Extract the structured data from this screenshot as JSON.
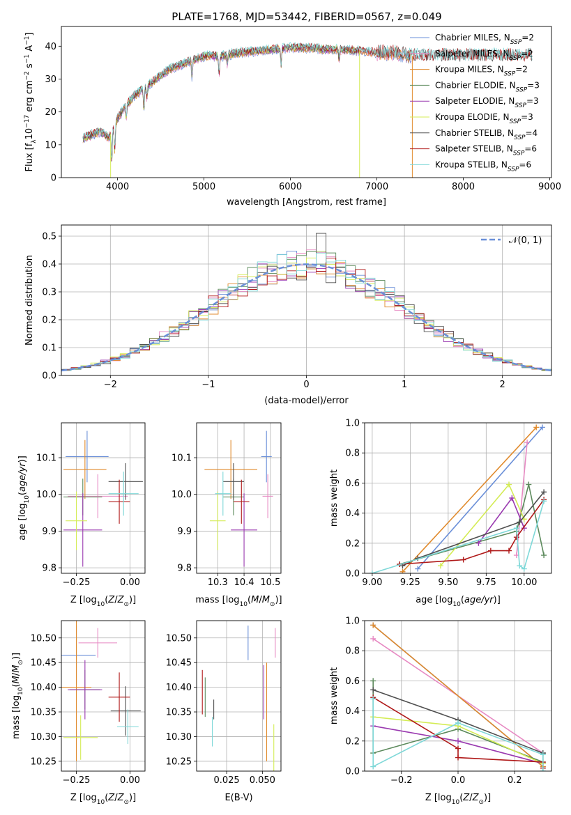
{
  "title": "PLATE=1768, MJD=53442, FIBERID=0567, z=0.049",
  "colors": [
    "#6a8fd8",
    "#e78ac3",
    "#e08a2c",
    "#5c8a5c",
    "#9a3ab0",
    "#d4ec55",
    "#505050",
    "#b01a1a",
    "#7fd8d8"
  ],
  "chart_data": [
    {
      "id": "spectrum",
      "type": "line",
      "xlabel": "wavelength [Angstrom, rest frame]",
      "ylabel": "Flux [f_λ 10^-17 erg cm^-2 s^-1 A^-1]",
      "xlim": [
        3350,
        9020
      ],
      "ylim": [
        0,
        46
      ],
      "xticks": [
        4000,
        5000,
        6000,
        7000,
        8000,
        9000
      ],
      "yticks": [
        0,
        10,
        20,
        30,
        40
      ],
      "grid": false,
      "legend_position": "upper-right",
      "series": [
        {
          "name": "Chabrier MILES, N_SSP=2",
          "x_range": [
            3600,
            7400
          ]
        },
        {
          "name": "Salpeter MILES, N_SSP=2",
          "x_range": [
            3600,
            7400
          ]
        },
        {
          "name": "Kroupa MILES, N_SSP=2",
          "x_range": [
            3600,
            7400
          ]
        },
        {
          "name": "Chabrier ELODIE, N_SSP=3",
          "x_range": [
            3600,
            6800
          ]
        },
        {
          "name": "Salpeter ELODIE, N_SSP=3",
          "x_range": [
            3600,
            6800
          ]
        },
        {
          "name": "Kroupa ELODIE, N_SSP=3",
          "x_range": [
            3600,
            6800
          ]
        },
        {
          "name": "Chabrier STELIB, N_SSP=4",
          "x_range": [
            3600,
            8800
          ]
        },
        {
          "name": "Salpeter STELIB, N_SSP=6",
          "x_range": [
            3600,
            8800
          ]
        },
        {
          "name": "Kroupa STELIB, N_SSP=6",
          "x_range": [
            3600,
            8800
          ]
        }
      ],
      "continuum": [
        [
          3600,
          12
        ],
        [
          3700,
          13
        ],
        [
          3800,
          14
        ],
        [
          3900,
          12
        ],
        [
          4000,
          18
        ],
        [
          4100,
          22
        ],
        [
          4200,
          25
        ],
        [
          4300,
          27
        ],
        [
          4400,
          29
        ],
        [
          4500,
          31
        ],
        [
          4600,
          33
        ],
        [
          4700,
          34
        ],
        [
          4800,
          35
        ],
        [
          4900,
          36
        ],
        [
          5000,
          37
        ],
        [
          5200,
          37
        ],
        [
          5400,
          38
        ],
        [
          5600,
          38.5
        ],
        [
          5800,
          39
        ],
        [
          6000,
          39.5
        ],
        [
          6200,
          39.5
        ],
        [
          6400,
          39
        ],
        [
          6600,
          39
        ],
        [
          6800,
          38.5
        ],
        [
          7000,
          38
        ],
        [
          7200,
          38
        ],
        [
          7400,
          37
        ]
      ],
      "absorption_lines": [
        [
          3933,
          9
        ],
        [
          3968,
          8
        ],
        [
          4101,
          4
        ],
        [
          4305,
          6
        ],
        [
          4340,
          4
        ],
        [
          4861,
          5
        ],
        [
          5175,
          6
        ],
        [
          5270,
          3
        ],
        [
          5892,
          5
        ],
        [
          6563,
          3
        ]
      ],
      "spikes": [
        [
          3920,
          0
        ],
        [
          6800,
          0
        ],
        [
          7410,
          0
        ]
      ]
    },
    {
      "id": "residuals",
      "type": "histogram",
      "xlabel": "(data-model)/error",
      "ylabel": "Normed distribution",
      "xlim": [
        -2.5,
        2.5
      ],
      "ylim": [
        0,
        0.54
      ],
      "xticks": [
        -2,
        -1,
        0,
        1,
        2
      ],
      "xtick_labels": [
        "−2",
        "−1",
        "0",
        "1",
        "2"
      ],
      "yticks": [
        0.0,
        0.1,
        0.2,
        0.3,
        0.4,
        0.5
      ],
      "grid": true,
      "reference_curve": "𝒩(0, 1)",
      "bin_width": 0.1,
      "bin_start": -2.5,
      "noise_seed": 7
    },
    {
      "id": "age-vs-Z",
      "type": "errorbar",
      "xlabel": "Z [log10(Z/Z⊙)]",
      "ylabel": "age  [log10(age/yr)]",
      "xlim": [
        -0.32,
        0.07
      ],
      "ylim": [
        9.785,
        10.195
      ],
      "xticks": [
        -0.25,
        0.0
      ],
      "xtick_labels": [
        "−0.25",
        "0.00"
      ],
      "yticks": [
        9.8,
        9.9,
        10.0,
        10.1
      ],
      "grid": true,
      "points": [
        {
          "x": -0.2,
          "y": 10.103,
          "xerr": 0.1,
          "yerr": 0.07
        },
        {
          "x": -0.15,
          "y": 9.995,
          "xerr": 0.14,
          "yerr": 0.06
        },
        {
          "x": -0.21,
          "y": 10.068,
          "xerr": 0.1,
          "yerr": 0.08
        },
        {
          "x": -0.22,
          "y": 9.993,
          "xerr": 0.09,
          "yerr": 0.05
        },
        {
          "x": -0.22,
          "y": 9.903,
          "xerr": 0.09,
          "yerr": 0.1
        },
        {
          "x": -0.25,
          "y": 9.928,
          "xerr": 0.05,
          "yerr": 0.08
        },
        {
          "x": -0.02,
          "y": 10.035,
          "xerr": 0.08,
          "yerr": 0.05
        },
        {
          "x": -0.05,
          "y": 9.98,
          "xerr": 0.05,
          "yerr": 0.06
        },
        {
          "x": -0.03,
          "y": 10.002,
          "xerr": 0.07,
          "yerr": 0.06
        }
      ]
    },
    {
      "id": "age-vs-mass",
      "type": "errorbar",
      "xlabel": "mass [log10(M/M⊙)]",
      "ylabel": "",
      "xlim": [
        10.22,
        10.54
      ],
      "ylim": [
        9.785,
        10.195
      ],
      "xticks": [
        10.3,
        10.4,
        10.5
      ],
      "yticks": [
        9.8,
        9.9,
        10.0,
        10.1
      ],
      "grid": true,
      "points": [
        {
          "x": 10.485,
          "y": 10.103,
          "xerr": 0.02,
          "yerr": 0.07
        },
        {
          "x": 10.49,
          "y": 9.995,
          "xerr": 0.02,
          "yerr": 0.06
        },
        {
          "x": 10.35,
          "y": 10.068,
          "xerr": 0.1,
          "yerr": 0.08
        },
        {
          "x": 10.36,
          "y": 9.993,
          "xerr": 0.04,
          "yerr": 0.05
        },
        {
          "x": 10.4,
          "y": 9.903,
          "xerr": 0.05,
          "yerr": 0.1
        },
        {
          "x": 10.3,
          "y": 9.928,
          "xerr": 0.03,
          "yerr": 0.08
        },
        {
          "x": 10.36,
          "y": 10.035,
          "xerr": 0.04,
          "yerr": 0.05
        },
        {
          "x": 10.39,
          "y": 9.98,
          "xerr": 0.03,
          "yerr": 0.06
        },
        {
          "x": 10.32,
          "y": 10.002,
          "xerr": 0.03,
          "yerr": 0.06
        }
      ]
    },
    {
      "id": "massweight-vs-age",
      "type": "line",
      "xlabel": "age  [log10(age/yr)]",
      "ylabel": "mass weight",
      "xlim": [
        8.95,
        10.18
      ],
      "ylim": [
        0.0,
        1.0
      ],
      "xticks": [
        9.0,
        9.25,
        9.5,
        9.75,
        10.0
      ],
      "xtick_labels": [
        "9.00",
        "9.25",
        "9.50",
        "9.75",
        "10.00"
      ],
      "yticks": [
        0.0,
        0.2,
        0.4,
        0.6,
        0.8,
        1.0
      ],
      "grid": true,
      "series": [
        {
          "x": [
            9.3,
            10.12
          ],
          "y": [
            0.03,
            0.97
          ]
        },
        {
          "x": [
            9.95,
            10.02
          ],
          "y": [
            0.12,
            0.87
          ]
        },
        {
          "x": [
            9.2,
            10.08
          ],
          "y": [
            0.01,
            0.97
          ]
        },
        {
          "x": [
            9.18,
            9.95,
            10.03,
            10.13
          ],
          "y": [
            0.06,
            0.28,
            0.59,
            0.12
          ]
        },
        {
          "x": [
            9.7,
            9.92,
            10.0
          ],
          "y": [
            0.2,
            0.5,
            0.3
          ]
        },
        {
          "x": [
            9.45,
            9.9,
            10.0
          ],
          "y": [
            0.05,
            0.59,
            0.36
          ]
        },
        {
          "x": [
            9.2,
            9.3,
            9.97,
            10.13
          ],
          "y": [
            0.05,
            0.1,
            0.34,
            0.54
          ]
        },
        {
          "x": [
            9.18,
            9.6,
            9.78,
            9.9,
            9.95,
            10.13
          ],
          "y": [
            0.06,
            0.09,
            0.15,
            0.15,
            0.24,
            0.49
          ]
        },
        {
          "x": [
            9.0,
            9.95,
            9.97,
            10.0,
            10.13
          ],
          "y": [
            0.0,
            0.3,
            0.05,
            0.03,
            0.48
          ]
        }
      ]
    },
    {
      "id": "mass-vs-Z",
      "type": "errorbar",
      "xlabel": "Z [log10(Z/Z⊙)]",
      "ylabel": "mass [log10(M/M⊙)]",
      "xlim": [
        -0.32,
        0.07
      ],
      "ylim": [
        10.23,
        10.535
      ],
      "xticks": [
        -0.25,
        0.0
      ],
      "xtick_labels": [
        "−0.25",
        "0.00"
      ],
      "yticks": [
        10.25,
        10.3,
        10.35,
        10.4,
        10.45,
        10.5
      ],
      "grid": true,
      "points": [
        {
          "x": -0.25,
          "y": 10.465,
          "xerr": 0.09,
          "yerr": 0.06
        },
        {
          "x": -0.15,
          "y": 10.49,
          "xerr": 0.09,
          "yerr": 0.03
        },
        {
          "x": -0.25,
          "y": 10.4,
          "xerr": 0.07,
          "yerr": 0.15
        },
        {
          "x": -0.21,
          "y": 10.395,
          "xerr": 0.07,
          "yerr": 0.04
        },
        {
          "x": -0.21,
          "y": 10.395,
          "xerr": 0.08,
          "yerr": 0.06
        },
        {
          "x": -0.23,
          "y": 10.298,
          "xerr": 0.08,
          "yerr": 0.045
        },
        {
          "x": -0.02,
          "y": 10.352,
          "xerr": 0.07,
          "yerr": 0.05
        },
        {
          "x": -0.05,
          "y": 10.38,
          "xerr": 0.05,
          "yerr": 0.05
        },
        {
          "x": -0.01,
          "y": 10.32,
          "xerr": 0.05,
          "yerr": 0.035
        }
      ]
    },
    {
      "id": "mass-vs-EBV",
      "type": "errorbar",
      "xlabel": "E(B-V)",
      "ylabel": "",
      "xlim": [
        0.004,
        0.063
      ],
      "ylim": [
        10.23,
        10.535
      ],
      "xticks": [
        0.025,
        0.05
      ],
      "xtick_labels": [
        "0.025",
        "0.050"
      ],
      "yticks": [
        10.25,
        10.3,
        10.35,
        10.4,
        10.45,
        10.5
      ],
      "grid": true,
      "points": [
        {
          "x": 0.04,
          "y": 10.49,
          "xerr": 0.0,
          "yerr": 0.035
        },
        {
          "x": 0.059,
          "y": 10.49,
          "xerr": 0.0,
          "yerr": 0.03
        },
        {
          "x": 0.053,
          "y": 10.35,
          "xerr": 0.0,
          "yerr": 0.1
        },
        {
          "x": 0.01,
          "y": 10.38,
          "xerr": 0.0,
          "yerr": 0.04
        },
        {
          "x": 0.051,
          "y": 10.39,
          "xerr": 0.0,
          "yerr": 0.055
        },
        {
          "x": 0.058,
          "y": 10.275,
          "xerr": 0.0,
          "yerr": 0.05
        },
        {
          "x": 0.016,
          "y": 10.355,
          "xerr": 0.0,
          "yerr": 0.02
        },
        {
          "x": 0.008,
          "y": 10.39,
          "xerr": 0.0,
          "yerr": 0.045
        },
        {
          "x": 0.015,
          "y": 10.31,
          "xerr": 0.0,
          "yerr": 0.03
        }
      ]
    },
    {
      "id": "massweight-vs-Z",
      "type": "line",
      "xlabel": "Z [log10(Z/Z⊙)]",
      "ylabel": "mass weight",
      "xlim": [
        -0.33,
        0.33
      ],
      "ylim": [
        0.0,
        1.0
      ],
      "xticks": [
        -0.2,
        0.0,
        0.2
      ],
      "xtick_labels": [
        "−0.2",
        "0.0",
        "0.2"
      ],
      "yticks": [
        0.0,
        0.2,
        0.4,
        0.6,
        0.8,
        1.0
      ],
      "grid": true,
      "series": [
        {
          "x": [
            -0.3,
            0.3
          ],
          "y": [
            0.97,
            0.03
          ]
        },
        {
          "x": [
            -0.3,
            0.3
          ],
          "y": [
            0.88,
            0.12
          ]
        },
        {
          "x": [
            -0.3,
            0.3
          ],
          "y": [
            0.97,
            0.03
          ]
        },
        {
          "x": [
            -0.3,
            -0.3,
            0.0,
            0.3,
            0.3
          ],
          "y": [
            0.6,
            0.12,
            0.28,
            0.06,
            0.12
          ]
        },
        {
          "x": [
            -0.3,
            0.0,
            0.3
          ],
          "y": [
            0.3,
            0.2,
            0.05
          ]
        },
        {
          "x": [
            -0.3,
            0.0,
            0.3
          ],
          "y": [
            0.36,
            0.3,
            0.05
          ]
        },
        {
          "x": [
            -0.3,
            0.0,
            0.3
          ],
          "y": [
            0.54,
            0.34,
            0.12
          ]
        },
        {
          "x": [
            -0.3,
            0.0,
            0.0,
            0.3,
            0.3
          ],
          "y": [
            0.49,
            0.15,
            0.09,
            0.06,
            0.02
          ]
        },
        {
          "x": [
            -0.3,
            -0.3,
            0.0,
            0.3,
            0.3
          ],
          "y": [
            0.48,
            0.03,
            0.32,
            0.11,
            0.0
          ]
        }
      ]
    }
  ]
}
